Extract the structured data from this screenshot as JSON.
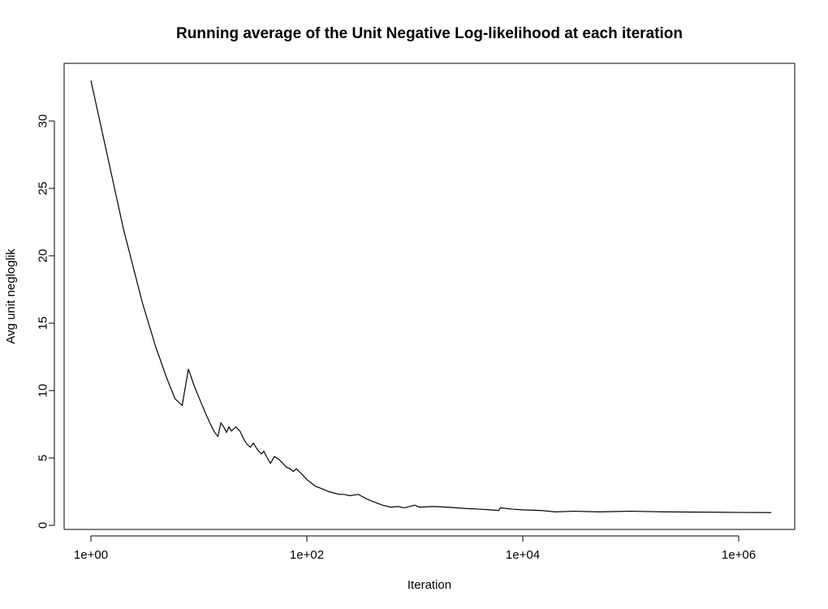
{
  "chart_data": {
    "type": "line",
    "title": "Running average of the Unit Negative Log-likelihood at each iteration",
    "xlabel": "Iteration",
    "ylabel": "Avg unit negloglik",
    "x_scale": "log10",
    "xlim": [
      1,
      2000000
    ],
    "ylim": [
      0,
      33
    ],
    "x_ticks": [
      {
        "value": 1,
        "label": "1e+00"
      },
      {
        "value": 100,
        "label": "1e+02"
      },
      {
        "value": 10000,
        "label": "1e+04"
      },
      {
        "value": 1000000,
        "label": "1e+06"
      }
    ],
    "y_ticks": [
      {
        "value": 0,
        "label": "0"
      },
      {
        "value": 5,
        "label": "5"
      },
      {
        "value": 10,
        "label": "10"
      },
      {
        "value": 15,
        "label": "15"
      },
      {
        "value": 20,
        "label": "20"
      },
      {
        "value": 25,
        "label": "25"
      },
      {
        "value": 30,
        "label": "30"
      }
    ],
    "grid": false,
    "series": [
      {
        "x": [
          1,
          2,
          3,
          4,
          5,
          6,
          7,
          8,
          9,
          10,
          11,
          12,
          13,
          14,
          15,
          16,
          17,
          18,
          19,
          20,
          22,
          24,
          26,
          28,
          30,
          32,
          35,
          38,
          40,
          43,
          46,
          50,
          55,
          60,
          65,
          70,
          75,
          80,
          90,
          100,
          120,
          140,
          160,
          200,
          220,
          250,
          300,
          350,
          400,
          500,
          600,
          700,
          800,
          1000,
          1100,
          1500,
          2000,
          3000,
          4000,
          5000,
          6000,
          6200,
          8000,
          10000,
          15000,
          20000,
          30000,
          50000,
          100000,
          200000,
          500000,
          1000000,
          2000000
        ],
        "y": [
          33.0,
          22.0,
          16.5,
          13.2,
          11.0,
          9.4,
          8.9,
          11.6,
          10.4,
          9.5,
          8.7,
          8.0,
          7.4,
          6.9,
          6.6,
          7.6,
          7.3,
          6.9,
          7.3,
          7.0,
          7.3,
          7.0,
          6.4,
          6.0,
          5.8,
          6.1,
          5.6,
          5.3,
          5.5,
          5.0,
          4.6,
          5.1,
          4.9,
          4.6,
          4.3,
          4.2,
          4.0,
          4.2,
          3.8,
          3.4,
          2.9,
          2.7,
          2.5,
          2.3,
          2.3,
          2.2,
          2.3,
          2.0,
          1.8,
          1.5,
          1.35,
          1.4,
          1.3,
          1.5,
          1.35,
          1.4,
          1.35,
          1.25,
          1.2,
          1.15,
          1.1,
          1.3,
          1.2,
          1.15,
          1.1,
          1.0,
          1.05,
          1.0,
          1.05,
          1.0,
          0.98,
          0.96,
          0.95
        ]
      }
    ]
  }
}
